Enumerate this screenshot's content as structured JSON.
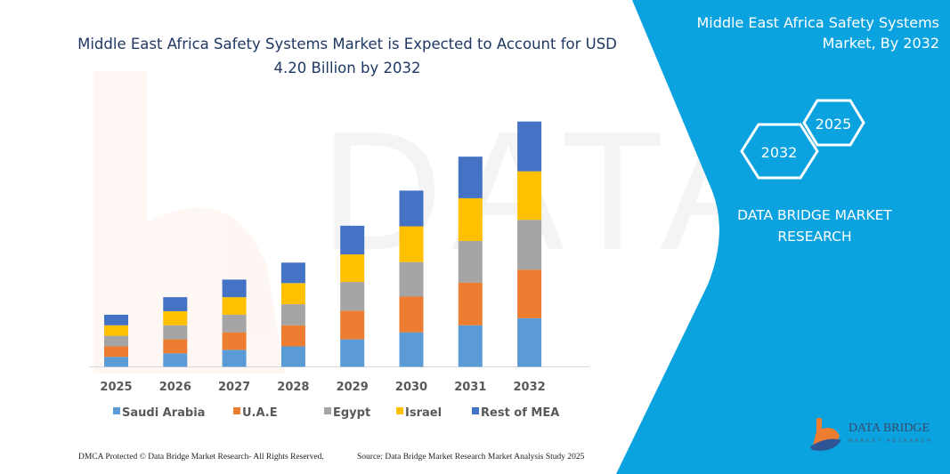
{
  "title": {
    "line1": "Middle East Africa Safety Systems Market is Expected to Account for USD",
    "line2": "4.20 Billion by 2032"
  },
  "side_panel": {
    "title_line1": "Middle East Africa Safety Systems",
    "title_line2": "Market, By 2032",
    "hex_front": "2032",
    "hex_back": "2025",
    "brand_line1": "DATA BRIDGE MARKET",
    "brand_line2": "RESEARCH",
    "logo_text": "DATA BRIDGE",
    "logo_subtext": "MARKET RESEARCH",
    "panel_color": "#0AA2DF"
  },
  "footer": {
    "left": "DMCA Protected © Data Bridge Market Research-  All Rights Reserved.",
    "right": "Source: Data Bridge Market Research  Market Analysis Study 2025"
  },
  "chart_data": {
    "type": "bar",
    "stacked": true,
    "title": "Middle East Africa Safety Systems Market is Expected to Account for USD 4.20 Billion by 2032",
    "xlabel": "",
    "ylabel": "",
    "y_axis_shown": false,
    "grid": false,
    "legend_position": "bottom",
    "categories": [
      "2025",
      "2026",
      "2027",
      "2028",
      "2029",
      "2030",
      "2031",
      "2032"
    ],
    "series": [
      {
        "name": "Saudi Arabia",
        "color": "#5B9BD5",
        "values": [
          0.17,
          0.23,
          0.29,
          0.35,
          0.47,
          0.59,
          0.71,
          0.83
        ]
      },
      {
        "name": "U.A.E",
        "color": "#ED7D31",
        "values": [
          0.18,
          0.24,
          0.3,
          0.36,
          0.49,
          0.61,
          0.73,
          0.83
        ]
      },
      {
        "name": "Egypt",
        "color": "#A5A5A5",
        "values": [
          0.18,
          0.24,
          0.3,
          0.36,
          0.49,
          0.59,
          0.71,
          0.85
        ]
      },
      {
        "name": "Israel",
        "color": "#FFC000",
        "values": [
          0.18,
          0.24,
          0.3,
          0.36,
          0.47,
          0.61,
          0.73,
          0.83
        ]
      },
      {
        "name": "Rest of MEA",
        "color": "#4472C4",
        "values": [
          0.18,
          0.24,
          0.3,
          0.35,
          0.49,
          0.61,
          0.71,
          0.85
        ]
      }
    ],
    "ylim": [
      0,
      4.2
    ]
  }
}
